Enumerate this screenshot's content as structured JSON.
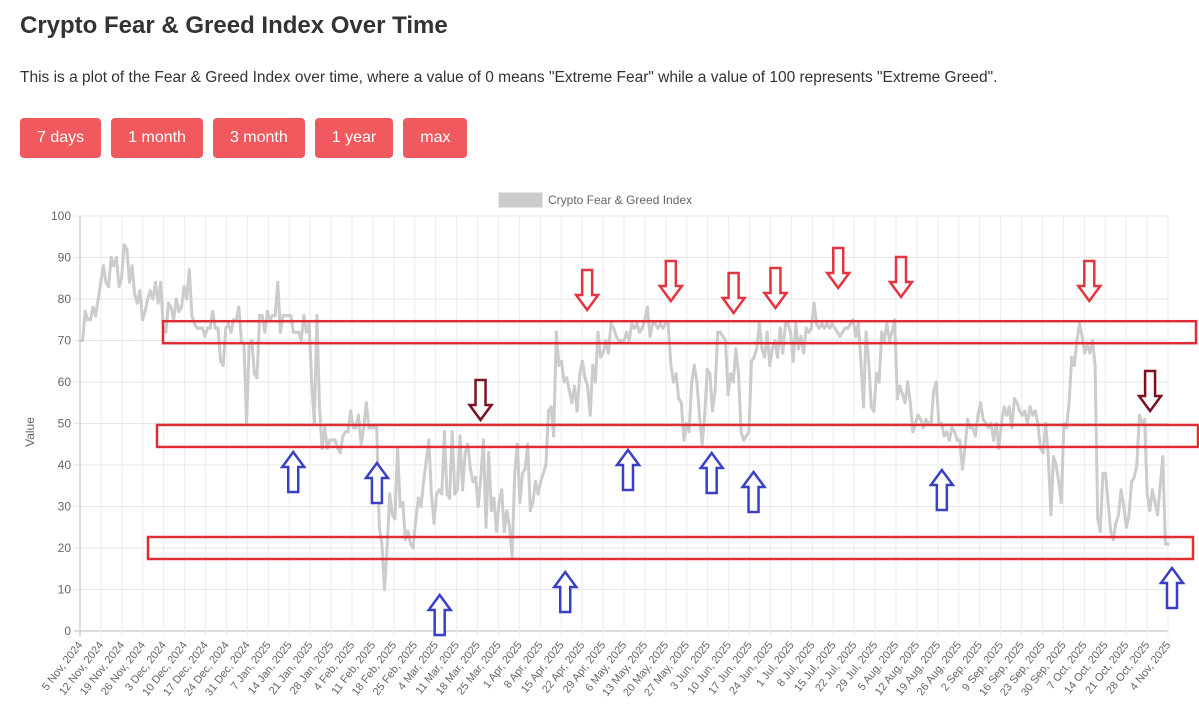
{
  "page": {
    "title": "Crypto Fear & Greed Index Over Time",
    "description": "This is a plot of the Fear & Greed Index over time, where a value of 0 means \"Extreme Fear\" while a value of 100 represents \"Extreme Greed\".",
    "buttons": [
      "7 days",
      "1 month",
      "3 month",
      "1 year",
      "max"
    ],
    "accent_color": "#f05a5e"
  },
  "chart_data": {
    "type": "line",
    "title": "",
    "ylabel": "Value",
    "xlabel": "",
    "ylim": [
      0,
      100
    ],
    "y_ticks": [
      0,
      10,
      20,
      30,
      40,
      50,
      60,
      70,
      80,
      90,
      100
    ],
    "grid": true,
    "legend_position": "top-center",
    "x_tick_labels": [
      "5 Nov, 2024",
      "12 Nov, 2024",
      "19 Nov, 2024",
      "26 Nov, 2024",
      "3 Dec, 2024",
      "10 Dec, 2024",
      "17 Dec, 2024",
      "24 Dec, 2024",
      "31 Dec, 2024",
      "7 Jan, 2025",
      "14 Jan, 2025",
      "21 Jan, 2025",
      "28 Jan, 2025",
      "4 Feb, 2025",
      "11 Feb, 2025",
      "18 Feb, 2025",
      "25 Feb, 2025",
      "4 Mar, 2025",
      "11 Mar, 2025",
      "18 Mar, 2025",
      "25 Mar, 2025",
      "1 Apr, 2025",
      "8 Apr, 2025",
      "15 Apr, 2025",
      "22 Apr, 2025",
      "29 Apr, 2025",
      "6 May, 2025",
      "13 May, 2025",
      "20 May, 2025",
      "27 May, 2025",
      "3 Jun, 2025",
      "10 Jun, 2025",
      "17 Jun, 2025",
      "24 Jun, 2025",
      "1 Jul, 2025",
      "8 Jul, 2025",
      "15 Jul, 2025",
      "22 Jul, 2025",
      "29 Jul, 2025",
      "5 Aug, 2025",
      "12 Aug, 2025",
      "19 Aug, 2025",
      "26 Aug, 2025",
      "2 Sep, 2025",
      "9 Sep, 2025",
      "16 Sep, 2025",
      "23 Sep, 2025",
      "30 Sep, 2025",
      "7 Oct, 2025",
      "14 Oct, 2025",
      "21 Oct, 2025",
      "28 Oct, 2025",
      "4 Nov, 2025"
    ],
    "series": [
      {
        "name": "Crypto Fear & Greed Index",
        "color": "#cccccc",
        "values": [
          70,
          70,
          77,
          75,
          75,
          78,
          76,
          80,
          84,
          88,
          84,
          83,
          90,
          88,
          90,
          83,
          85,
          93,
          92,
          84,
          88,
          81,
          79,
          82,
          75,
          77,
          80,
          82,
          80,
          84,
          79,
          84,
          73,
          72,
          79,
          78,
          75,
          80,
          77,
          78,
          83,
          80,
          87,
          76,
          74,
          73,
          73,
          73,
          71,
          73,
          73,
          77,
          73,
          73,
          65,
          64,
          73,
          74,
          72,
          75,
          75,
          78,
          70,
          69,
          50,
          69,
          70,
          62,
          61,
          76,
          76,
          72,
          77,
          75,
          76,
          76,
          84,
          72,
          76,
          76,
          76,
          76,
          72,
          72,
          72,
          70,
          76,
          72,
          74,
          60,
          50,
          76,
          54,
          44,
          49,
          44,
          46,
          46,
          46,
          44,
          43,
          47,
          48,
          48,
          53,
          49,
          49,
          52,
          45,
          49,
          55,
          49,
          49,
          49,
          49,
          25,
          21,
          10,
          20,
          33,
          28,
          27,
          44,
          30,
          31,
          22,
          24,
          21,
          20,
          27,
          32,
          30,
          36,
          41,
          46,
          33,
          26,
          33,
          34,
          33,
          48,
          33,
          32,
          48,
          33,
          34,
          47,
          34,
          43,
          45,
          39,
          36,
          37,
          30,
          37,
          46,
          25,
          43,
          29,
          32,
          24,
          31,
          34,
          24,
          29,
          25,
          18,
          38,
          45,
          31,
          38,
          39,
          45,
          29,
          31,
          36,
          33,
          36,
          38,
          40,
          53,
          54,
          47,
          72,
          64,
          65,
          60,
          61,
          58,
          55,
          59,
          53,
          62,
          65,
          61,
          59,
          52,
          64,
          60,
          72,
          66,
          67,
          70,
          67,
          74,
          73,
          71,
          70,
          70,
          70,
          72,
          70,
          74,
          73,
          74,
          72,
          73,
          75,
          78,
          71,
          74,
          74,
          73,
          74,
          73,
          74,
          74,
          64,
          60,
          62,
          56,
          55,
          46,
          50,
          48,
          60,
          64,
          60,
          52,
          45,
          52,
          63,
          62,
          53,
          58,
          72,
          72,
          71,
          70,
          57,
          62,
          60,
          68,
          62,
          48,
          46,
          47,
          48,
          65,
          66,
          68,
          74,
          68,
          66,
          72,
          64,
          68,
          70,
          66,
          73,
          67,
          74,
          74,
          72,
          65,
          74,
          68,
          71,
          67,
          73,
          72,
          73,
          79,
          74,
          73,
          74,
          73,
          74,
          73,
          74,
          73,
          72,
          71,
          72,
          73,
          73,
          74,
          75,
          71,
          74,
          65,
          54,
          72,
          65,
          54,
          53,
          62,
          60,
          72,
          70,
          74,
          70,
          72,
          75,
          56,
          59,
          57,
          55,
          60,
          55,
          48,
          50,
          52,
          51,
          49,
          51,
          50,
          50,
          58,
          60,
          50,
          50,
          47,
          48,
          46,
          49,
          48,
          46,
          46,
          39,
          44,
          51,
          49,
          49,
          47,
          52,
          55,
          51,
          50,
          49,
          50,
          46,
          50,
          44,
          50,
          54,
          52,
          54,
          49,
          56,
          55,
          53,
          52,
          53,
          50,
          54,
          52,
          53,
          50,
          44,
          43,
          50,
          42,
          28,
          42,
          40,
          36,
          31,
          50,
          49,
          55,
          66,
          64,
          70,
          74,
          71,
          67,
          69,
          67,
          70,
          64,
          27,
          24,
          38,
          38,
          31,
          24,
          22,
          26,
          28,
          34,
          30,
          25,
          28,
          36,
          37,
          40,
          52,
          50,
          51,
          33,
          29,
          34,
          31,
          28,
          35,
          42,
          21,
          21
        ]
      }
    ],
    "annotations": {
      "zone_boxes": [
        {
          "level": 72,
          "color": "#e02d35"
        },
        {
          "level": 47,
          "color": "#e02d35"
        },
        {
          "level": 20,
          "color": "#e02d35"
        }
      ],
      "down_arrows_red": [
        {
          "date": "22 Apr, 2025",
          "color": "#e23540"
        },
        {
          "date": "20 May, 2025",
          "color": "#e23540"
        },
        {
          "date": "10 Jun, 2025",
          "color": "#e23540"
        },
        {
          "date": "24 Jun, 2025",
          "color": "#e23540"
        },
        {
          "date": "15 Jul, 2025",
          "color": "#e23540"
        },
        {
          "date": "5 Aug, 2025",
          "color": "#e23540"
        },
        {
          "date": "7 Oct, 2025",
          "color": "#e23540"
        }
      ],
      "down_arrows_dark": [
        {
          "date": "18 Mar, 2025",
          "color": "#7a1222"
        },
        {
          "date": "28 Oct, 2025",
          "color": "#7a1222"
        }
      ],
      "up_arrows_blue": [
        {
          "date": "14 Jan, 2025",
          "color": "#3a3fc5"
        },
        {
          "date": "11 Feb, 2025",
          "color": "#3a3fc5"
        },
        {
          "date": "4 Mar, 2025",
          "color": "#3a3fc5"
        },
        {
          "date": "15 Apr, 2025",
          "color": "#3a3fc5"
        },
        {
          "date": "6 May, 2025",
          "color": "#3a3fc5"
        },
        {
          "date": "3 Jun, 2025",
          "color": "#3a3fc5"
        },
        {
          "date": "17 Jun, 2025",
          "color": "#3a3fc5"
        },
        {
          "date": "19 Aug, 2025",
          "color": "#3a3fc5"
        },
        {
          "date": "4 Nov, 2025",
          "color": "#3a3fc5"
        }
      ]
    }
  }
}
